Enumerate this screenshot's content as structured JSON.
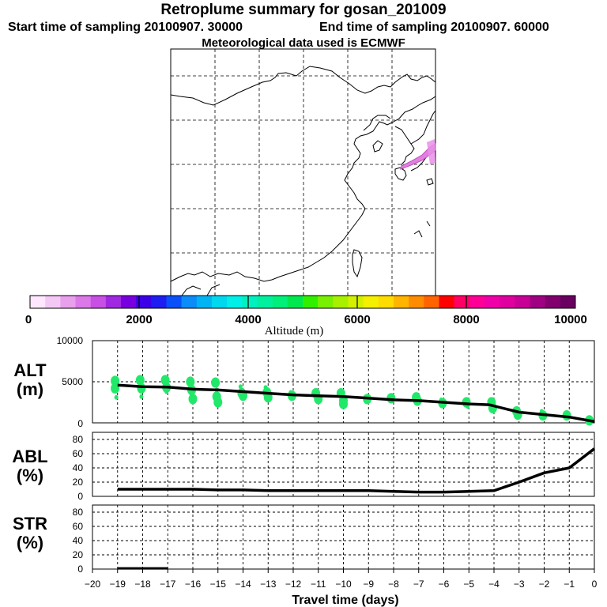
{
  "header": {
    "title": "Retroplume summary for gosan_201009",
    "start": "Start time of sampling 20100907. 30000",
    "end": "End time of sampling 20100907. 60000",
    "met": "Meteorological data used is ECMWF"
  },
  "colorbar": {
    "label": "Altitude (m)",
    "tick_labels": [
      "0",
      "2000",
      "4000",
      "6000",
      "8000",
      "10000"
    ],
    "colors": [
      "#ffe8ff",
      "#f4c8f4",
      "#e8a0ec",
      "#dc78e8",
      "#c850e4",
      "#a028e0",
      "#7800e0",
      "#3c00e8",
      "#1e1ef0",
      "#0a50f8",
      "#0c8cf8",
      "#00b4f4",
      "#00d8f0",
      "#00f0e8",
      "#00f0c0",
      "#00f0a0",
      "#00f07a",
      "#00e850",
      "#30f000",
      "#78f000",
      "#a8f000",
      "#d4f000",
      "#f4f000",
      "#ffdc00",
      "#ffb400",
      "#ff8c00",
      "#ff6400",
      "#ff0000",
      "#ff0064",
      "#ff0096",
      "#f000a8",
      "#e000a0",
      "#c80096",
      "#a00082",
      "#82006e",
      "#6a0060"
    ]
  },
  "panels": {
    "alt": {
      "name": "ALT",
      "unit": "(m)",
      "ticks": [
        "10000",
        "5000",
        "0"
      ]
    },
    "abl": {
      "name": "ABL",
      "unit": "(%)",
      "ticks": [
        "80",
        "60",
        "40",
        "20",
        "0"
      ]
    },
    "str": {
      "name": "STR",
      "unit": "(%)",
      "ticks": [
        "80",
        "60",
        "40",
        "20",
        "0"
      ]
    }
  },
  "xaxis": {
    "label": "Travel time (days)",
    "ticks": [
      "−20",
      "−19",
      "−18",
      "−17",
      "−16",
      "−15",
      "−14",
      "−13",
      "−12",
      "−11",
      "−10",
      "−9",
      "−8",
      "−7",
      "−6",
      "−5",
      "−4",
      "−3",
      "−2",
      "−1",
      "0"
    ]
  },
  "chart_data": [
    {
      "type": "line",
      "title": "ALT",
      "ylabel": "ALT (m)",
      "xlabel": "Travel time (days)",
      "ylim": [
        0,
        10000
      ],
      "xlim": [
        -20,
        0
      ],
      "x": [
        -19,
        -18,
        -17,
        -16,
        -15,
        -14,
        -13,
        -12,
        -11,
        -10,
        -9,
        -8,
        -7,
        -6,
        -5,
        -4.2,
        -3,
        -2,
        -1,
        0
      ],
      "values": [
        4600,
        4400,
        4350,
        4100,
        4000,
        3800,
        3600,
        3400,
        3300,
        3200,
        3000,
        2800,
        2700,
        2500,
        2300,
        2200,
        1300,
        1000,
        700,
        150
      ],
      "scatter_color": "#22e86a",
      "scatter": [
        [
          -19.1,
          5100
        ],
        [
          -19.1,
          4200
        ],
        [
          -19.05,
          3100
        ],
        [
          -18.1,
          5200
        ],
        [
          -18.05,
          4200
        ],
        [
          -18.05,
          3200
        ],
        [
          -17.1,
          5200
        ],
        [
          -17.05,
          4300
        ],
        [
          -17.05,
          3800
        ],
        [
          -16.1,
          5000
        ],
        [
          -16.05,
          4000
        ],
        [
          -16.05,
          3400
        ],
        [
          -16.0,
          2900
        ],
        [
          -15.1,
          4900
        ],
        [
          -15.05,
          4000
        ],
        [
          -15.05,
          3200
        ],
        [
          -15.0,
          2500
        ],
        [
          -14.1,
          4400
        ],
        [
          -14.05,
          3600
        ],
        [
          -14.0,
          3300
        ],
        [
          -13.1,
          4300
        ],
        [
          -13.05,
          3700
        ],
        [
          -13.0,
          3100
        ],
        [
          -12.1,
          3700
        ],
        [
          -12.05,
          3300
        ],
        [
          -11.1,
          3600
        ],
        [
          -11.05,
          3200
        ],
        [
          -11.0,
          2900
        ],
        [
          -10.1,
          3600
        ],
        [
          -10.05,
          3200
        ],
        [
          -10.0,
          2700
        ],
        [
          -10.0,
          2300
        ],
        [
          -9.1,
          3200
        ],
        [
          -9.05,
          2900
        ],
        [
          -8.1,
          3000
        ],
        [
          -8.05,
          2700
        ],
        [
          -7.1,
          3100
        ],
        [
          -7.05,
          2700
        ],
        [
          -6.1,
          2800
        ],
        [
          -6.05,
          2400
        ],
        [
          -5.1,
          2500
        ],
        [
          -5.05,
          2000
        ],
        [
          -4.1,
          2500
        ],
        [
          -4.05,
          1800
        ],
        [
          -4.05,
          1500
        ],
        [
          -3.1,
          1400
        ],
        [
          -3.05,
          1000
        ],
        [
          -2.1,
          1400
        ],
        [
          -2.05,
          900
        ],
        [
          -1.1,
          900
        ],
        [
          -1.05,
          600
        ],
        [
          -0.2,
          300
        ]
      ]
    },
    {
      "type": "line",
      "title": "ABL",
      "ylabel": "ABL (%)",
      "xlabel": "Travel time (days)",
      "ylim": [
        0,
        90
      ],
      "xlim": [
        -20,
        0
      ],
      "x": [
        -19,
        -18,
        -17,
        -16,
        -15,
        -14,
        -13,
        -12,
        -11,
        -10,
        -9,
        -8,
        -7,
        -6,
        -5,
        -4,
        -3,
        -2,
        -1,
        0
      ],
      "values": [
        10,
        10,
        10,
        10,
        9,
        9,
        8,
        8,
        8,
        8,
        8,
        7,
        6,
        6,
        7,
        8,
        20,
        33,
        40,
        67
      ]
    },
    {
      "type": "line",
      "title": "STR",
      "ylabel": "STR (%)",
      "xlabel": "Travel time (days)",
      "ylim": [
        0,
        90
      ],
      "xlim": [
        -20,
        0
      ],
      "x": [
        -19,
        -17
      ],
      "values": [
        1,
        1
      ]
    }
  ]
}
